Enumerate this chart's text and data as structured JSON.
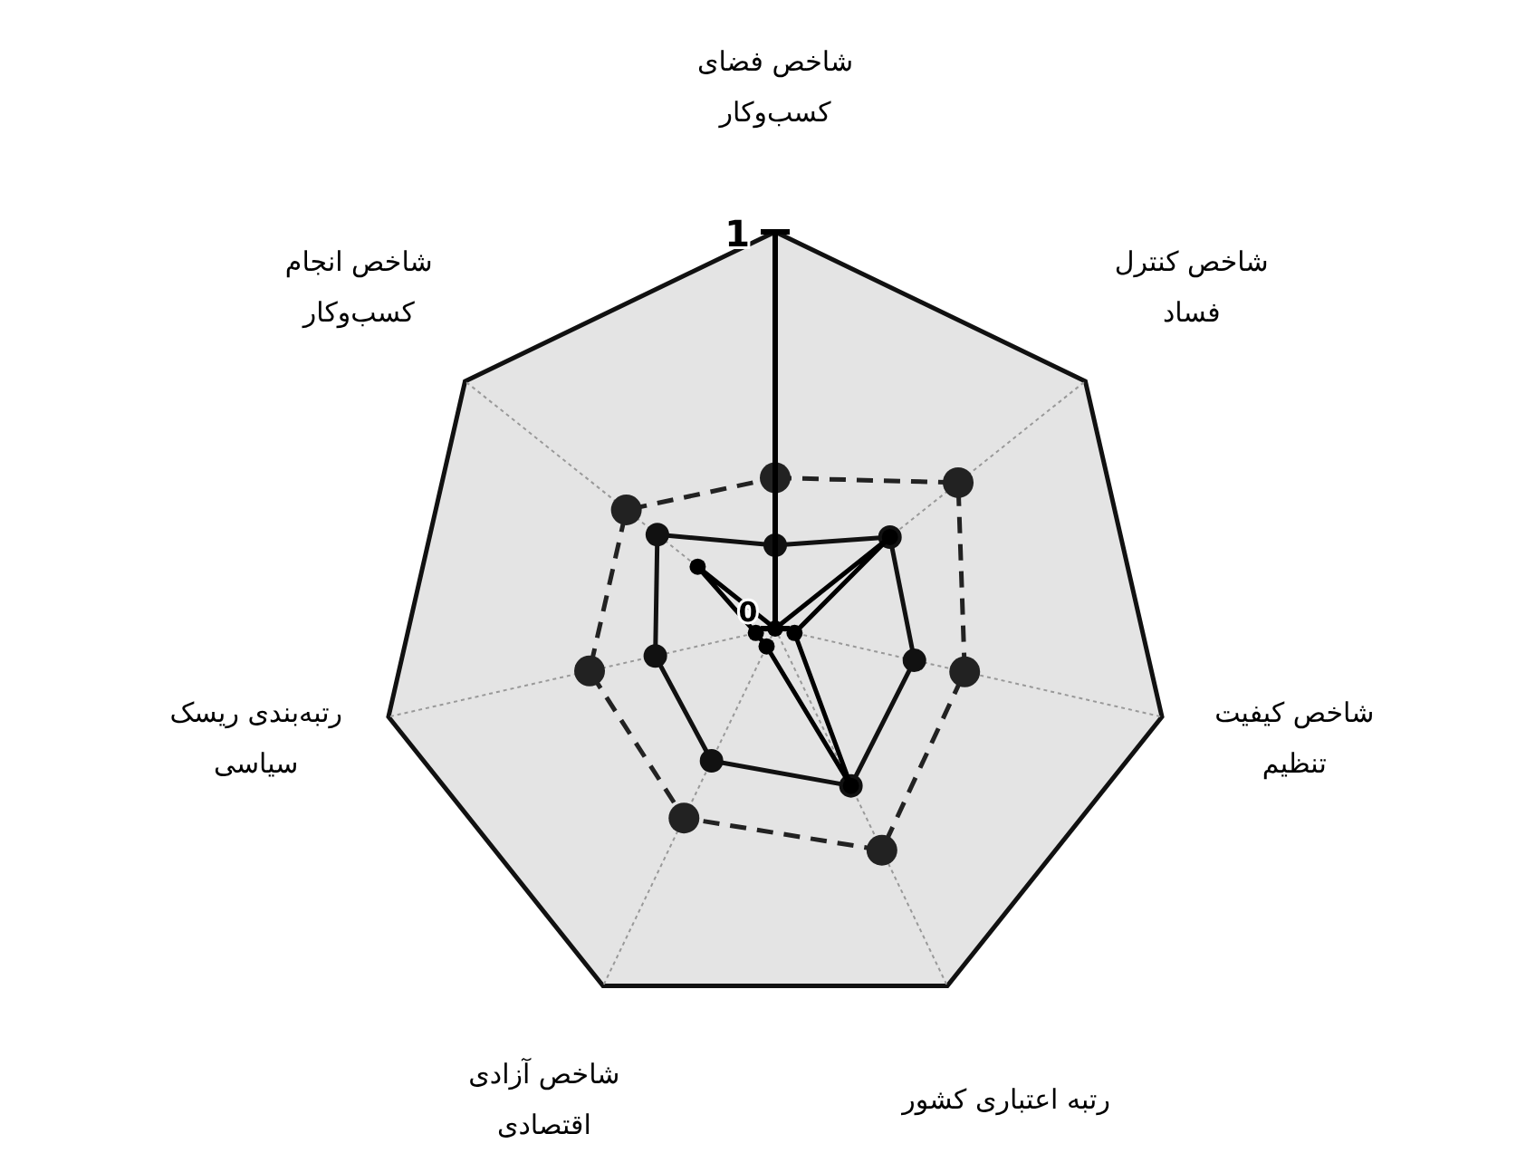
{
  "chart_data": {
    "type": "radar",
    "categories": [
      "شاخص فضای\nکسب‌وکار",
      "شاخص کنترل\nفساد",
      "شاخص کیفیت\nتنظیم",
      "رتبه اعتباری کشور",
      "شاخص آزادی\nاقتصادی",
      "رتبه‌بندی ریسک\nسیاسی",
      "شاخص انجام\nکسب‌وکار"
    ],
    "ylim": [
      0,
      1
    ],
    "yticks": [
      0,
      1
    ],
    "grid": true,
    "marker": "circle",
    "series": [
      {
        "color": "#222222",
        "line_style": "dashed",
        "values": [
          0.38,
          0.59,
          0.49,
          0.62,
          0.53,
          0.48,
          0.48
        ]
      },
      {
        "color": "#111111",
        "line_style": "solid",
        "values": [
          0.21,
          0.37,
          0.36,
          0.44,
          0.37,
          0.31,
          0.38
        ]
      },
      {
        "color": "#000000",
        "line_style": "solid",
        "values": [
          0.0,
          0.37,
          0.05,
          0.44,
          0.05,
          0.05,
          0.25
        ]
      }
    ]
  }
}
